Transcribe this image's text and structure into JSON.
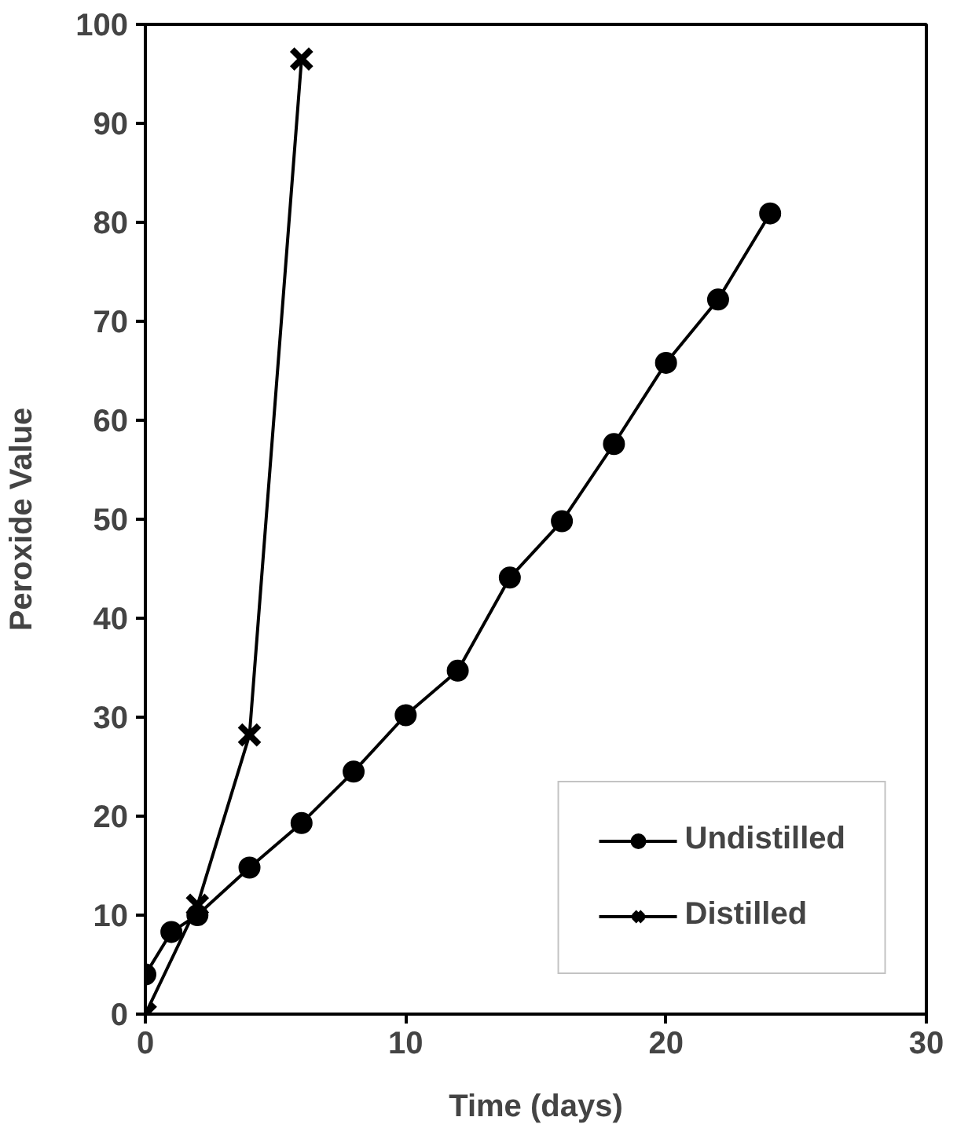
{
  "chart_data": {
    "type": "line",
    "xlabel": "Time (days)",
    "ylabel": "Peroxide Value",
    "xlim": [
      0,
      30
    ],
    "xticks": [
      0,
      10,
      20,
      30
    ],
    "ylim": [
      0,
      100
    ],
    "yticks": [
      0,
      10,
      20,
      30,
      40,
      50,
      60,
      70,
      80,
      90,
      100
    ],
    "grid": false,
    "legend": "bottom right",
    "line_style": "solid",
    "series": [
      {
        "name": "Undistilled",
        "color": "#000000",
        "marker": "circle",
        "x": [
          0,
          1,
          2,
          4,
          6,
          8,
          10,
          12,
          14,
          16,
          18,
          20,
          22,
          24
        ],
        "values": [
          4,
          8.3,
          10,
          14.8,
          19.3,
          24.5,
          30.2,
          34.7,
          44.1,
          49.8,
          57.6,
          65.8,
          72.2,
          80.9
        ]
      },
      {
        "name": "Distilled",
        "color": "#000000",
        "marker": "cross",
        "x": [
          0,
          2,
          4,
          6
        ],
        "values": [
          0,
          11,
          28.2,
          96.5
        ]
      }
    ]
  }
}
